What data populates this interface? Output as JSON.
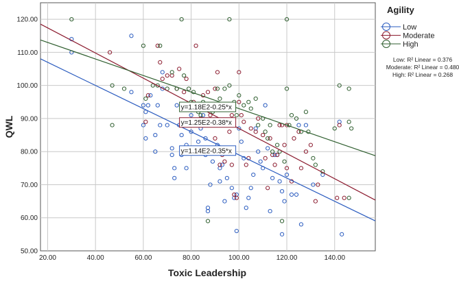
{
  "chart_data": {
    "type": "scatter",
    "xlabel": "Toxic Leadership",
    "ylabel": "QWL",
    "xlim": [
      17,
      157
    ],
    "ylim": [
      50,
      125
    ],
    "x_ticks": [
      "20.00",
      "40.00",
      "60.00",
      "80.00",
      "100.00",
      "120.00",
      "140.00"
    ],
    "y_ticks": [
      "50.00",
      "60.00",
      "70.00",
      "80.00",
      "90.00",
      "100.00",
      "110.00",
      "120.00"
    ],
    "grid": true,
    "legend": {
      "title": "Agility",
      "placement": "right",
      "r2_lines": [
        "Low: R² Linear = 0.376",
        "Moderate: R² Linear = 0.480",
        "High: R² Linear = 0.268"
      ]
    },
    "series": [
      {
        "name": "Low",
        "color": "#2a5bbf",
        "fit": {
          "intercept": 114,
          "slope": -0.35,
          "label": "y=1.14E2-0.35*x"
        },
        "points": [
          [
            30,
            114
          ],
          [
            30,
            110
          ],
          [
            55,
            115
          ],
          [
            55,
            98
          ],
          [
            60,
            94
          ],
          [
            60,
            88
          ],
          [
            61,
            84
          ],
          [
            61,
            92
          ],
          [
            62,
            94
          ],
          [
            63,
            97
          ],
          [
            65,
            85
          ],
          [
            65,
            80
          ],
          [
            66,
            94
          ],
          [
            67,
            88
          ],
          [
            68,
            99
          ],
          [
            68,
            104
          ],
          [
            70,
            88
          ],
          [
            72,
            81
          ],
          [
            72,
            79
          ],
          [
            73,
            75
          ],
          [
            73,
            72
          ],
          [
            74,
            94
          ],
          [
            75,
            88
          ],
          [
            76,
            85
          ],
          [
            76,
            79
          ],
          [
            78,
            75
          ],
          [
            78,
            82
          ],
          [
            79,
            88
          ],
          [
            80,
            91
          ],
          [
            80,
            86
          ],
          [
            82,
            80
          ],
          [
            83,
            83
          ],
          [
            84,
            87
          ],
          [
            85,
            89
          ],
          [
            85,
            91
          ],
          [
            86,
            84
          ],
          [
            86,
            79
          ],
          [
            87,
            63
          ],
          [
            87,
            62
          ],
          [
            88,
            70
          ],
          [
            89,
            77
          ],
          [
            90,
            80
          ],
          [
            91,
            82
          ],
          [
            91,
            88
          ],
          [
            92,
            71
          ],
          [
            92,
            75
          ],
          [
            93,
            76
          ],
          [
            94,
            65
          ],
          [
            95,
            72
          ],
          [
            96,
            89
          ],
          [
            97,
            69
          ],
          [
            98,
            66
          ],
          [
            99,
            67
          ],
          [
            99,
            56
          ],
          [
            100,
            87
          ],
          [
            101,
            83
          ],
          [
            102,
            78
          ],
          [
            103,
            63
          ],
          [
            104,
            66
          ],
          [
            105,
            69
          ],
          [
            106,
            73
          ],
          [
            107,
            87
          ],
          [
            108,
            80
          ],
          [
            109,
            77
          ],
          [
            110,
            75
          ],
          [
            111,
            94
          ],
          [
            112,
            81
          ],
          [
            113,
            62
          ],
          [
            114,
            72
          ],
          [
            115,
            79
          ],
          [
            116,
            79
          ],
          [
            117,
            71
          ],
          [
            118,
            68
          ],
          [
            118,
            55
          ],
          [
            119,
            65
          ],
          [
            120,
            73
          ],
          [
            122,
            67
          ],
          [
            124,
            67
          ],
          [
            125,
            88
          ],
          [
            126,
            58
          ],
          [
            128,
            88
          ],
          [
            131,
            70
          ],
          [
            135,
            73
          ],
          [
            142,
            89
          ],
          [
            143,
            55
          ]
        ]
      },
      {
        "name": "Moderate",
        "color": "#8b1a2e",
        "fit": {
          "intercept": 125,
          "slope": -0.38,
          "label": "y=1.25E2-0.38*x"
        },
        "points": [
          [
            46,
            110
          ],
          [
            61,
            89
          ],
          [
            62,
            97
          ],
          [
            66,
            112
          ],
          [
            67,
            107
          ],
          [
            68,
            102
          ],
          [
            70,
            103
          ],
          [
            72,
            103
          ],
          [
            74,
            99
          ],
          [
            75,
            105
          ],
          [
            77,
            98
          ],
          [
            78,
            102
          ],
          [
            80,
            94
          ],
          [
            81,
            95
          ],
          [
            82,
            112
          ],
          [
            84,
            90
          ],
          [
            85,
            97
          ],
          [
            86,
            93
          ],
          [
            87,
            98
          ],
          [
            88,
            91
          ],
          [
            90,
            84
          ],
          [
            90,
            99
          ],
          [
            91,
            104
          ],
          [
            92,
            76
          ],
          [
            93,
            79
          ],
          [
            94,
            88
          ],
          [
            94,
            77
          ],
          [
            95,
            88
          ],
          [
            96,
            86
          ],
          [
            97,
            91
          ],
          [
            97,
            76
          ],
          [
            98,
            67
          ],
          [
            99,
            66
          ],
          [
            100,
            95
          ],
          [
            100,
            104
          ],
          [
            101,
            91
          ],
          [
            102,
            89
          ],
          [
            103,
            76
          ],
          [
            104,
            78
          ],
          [
            105,
            87
          ],
          [
            107,
            86
          ],
          [
            108,
            90
          ],
          [
            110,
            85
          ],
          [
            111,
            78
          ],
          [
            112,
            69
          ],
          [
            113,
            84
          ],
          [
            114,
            79
          ],
          [
            115,
            76
          ],
          [
            116,
            79
          ],
          [
            117,
            88
          ],
          [
            118,
            88
          ],
          [
            119,
            82
          ],
          [
            120,
            75
          ],
          [
            120,
            88
          ],
          [
            122,
            71
          ],
          [
            123,
            84
          ],
          [
            125,
            86
          ],
          [
            126,
            75
          ],
          [
            128,
            80
          ],
          [
            130,
            82
          ],
          [
            132,
            65
          ],
          [
            133,
            70
          ],
          [
            141,
            66
          ],
          [
            142,
            88
          ],
          [
            144,
            66
          ]
        ]
      },
      {
        "name": "High",
        "color": "#2e5e2e",
        "fit": {
          "intercept": 118,
          "slope": -0.25,
          "label": "y=1.18E2-0.25*x"
        },
        "points": [
          [
            30,
            120
          ],
          [
            47,
            88
          ],
          [
            47,
            100
          ],
          [
            52,
            99
          ],
          [
            60,
            112
          ],
          [
            61,
            96
          ],
          [
            64,
            100
          ],
          [
            66,
            100
          ],
          [
            67,
            112
          ],
          [
            70,
            99
          ],
          [
            72,
            104
          ],
          [
            74,
            99
          ],
          [
            76,
            120
          ],
          [
            77,
            103
          ],
          [
            79,
            99
          ],
          [
            80,
            95
          ],
          [
            81,
            98
          ],
          [
            83,
            92
          ],
          [
            84,
            91
          ],
          [
            85,
            95
          ],
          [
            87,
            59
          ],
          [
            89,
            92
          ],
          [
            90,
            94
          ],
          [
            91,
            99
          ],
          [
            92,
            96
          ],
          [
            93,
            93
          ],
          [
            94,
            99
          ],
          [
            96,
            120
          ],
          [
            96,
            100
          ],
          [
            98,
            95
          ],
          [
            99,
            91
          ],
          [
            100,
            97
          ],
          [
            102,
            94
          ],
          [
            104,
            95
          ],
          [
            105,
            93
          ],
          [
            107,
            96
          ],
          [
            108,
            88
          ],
          [
            110,
            90
          ],
          [
            111,
            86
          ],
          [
            112,
            84
          ],
          [
            113,
            88
          ],
          [
            114,
            80
          ],
          [
            116,
            82
          ],
          [
            117,
            80
          ],
          [
            118,
            59
          ],
          [
            119,
            77
          ],
          [
            120,
            120
          ],
          [
            120,
            99
          ],
          [
            121,
            88
          ],
          [
            122,
            91
          ],
          [
            124,
            90
          ],
          [
            126,
            86
          ],
          [
            128,
            92
          ],
          [
            129,
            86
          ],
          [
            131,
            78
          ],
          [
            132,
            76
          ],
          [
            135,
            74
          ],
          [
            140,
            87
          ],
          [
            142,
            100
          ],
          [
            146,
            89
          ],
          [
            146,
            99
          ],
          [
            146,
            66
          ],
          [
            147,
            87
          ]
        ]
      }
    ]
  }
}
